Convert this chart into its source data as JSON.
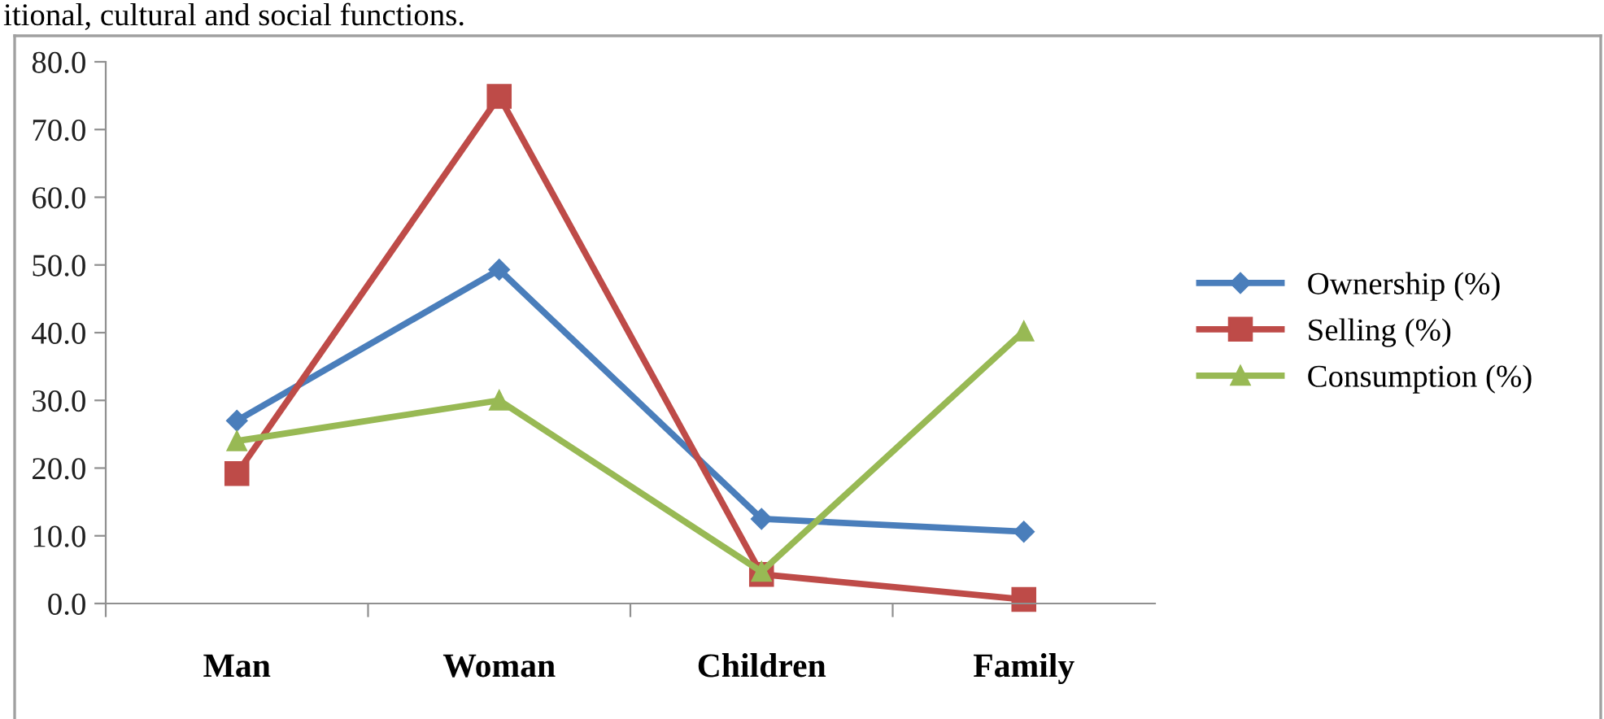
{
  "chart_data": {
    "type": "line",
    "categories": [
      "Man",
      "Woman",
      "Children",
      "Family"
    ],
    "series": [
      {
        "name": "Ownership (%)",
        "color": "#4a7ebb",
        "marker": "diamond",
        "values": [
          27.0,
          49.3,
          12.5,
          10.6
        ]
      },
      {
        "name": "Selling (%)",
        "color": "#be4b48",
        "marker": "square",
        "values": [
          19.2,
          74.9,
          4.3,
          0.6
        ]
      },
      {
        "name": "Consumption (%)",
        "color": "#98b954",
        "marker": "triangle",
        "values": [
          24.0,
          30.0,
          4.7,
          40.2
        ]
      }
    ],
    "ylim": [
      0,
      80
    ],
    "yticks": [
      {
        "value": 0,
        "label": "0.0"
      },
      {
        "value": 10,
        "label": "10.0"
      },
      {
        "value": 20,
        "label": "20.0"
      },
      {
        "value": 30,
        "label": "30.0"
      },
      {
        "value": 40,
        "label": "40.0"
      },
      {
        "value": 50,
        "label": "50.0"
      },
      {
        "value": 60,
        "label": "60.0"
      },
      {
        "value": 70,
        "label": "70.0"
      },
      {
        "value": 80,
        "label": "80.0"
      }
    ],
    "grid": false,
    "legend": "right",
    "line_style": "solid",
    "annotations": [
      "itional, cultural and social functions."
    ]
  }
}
